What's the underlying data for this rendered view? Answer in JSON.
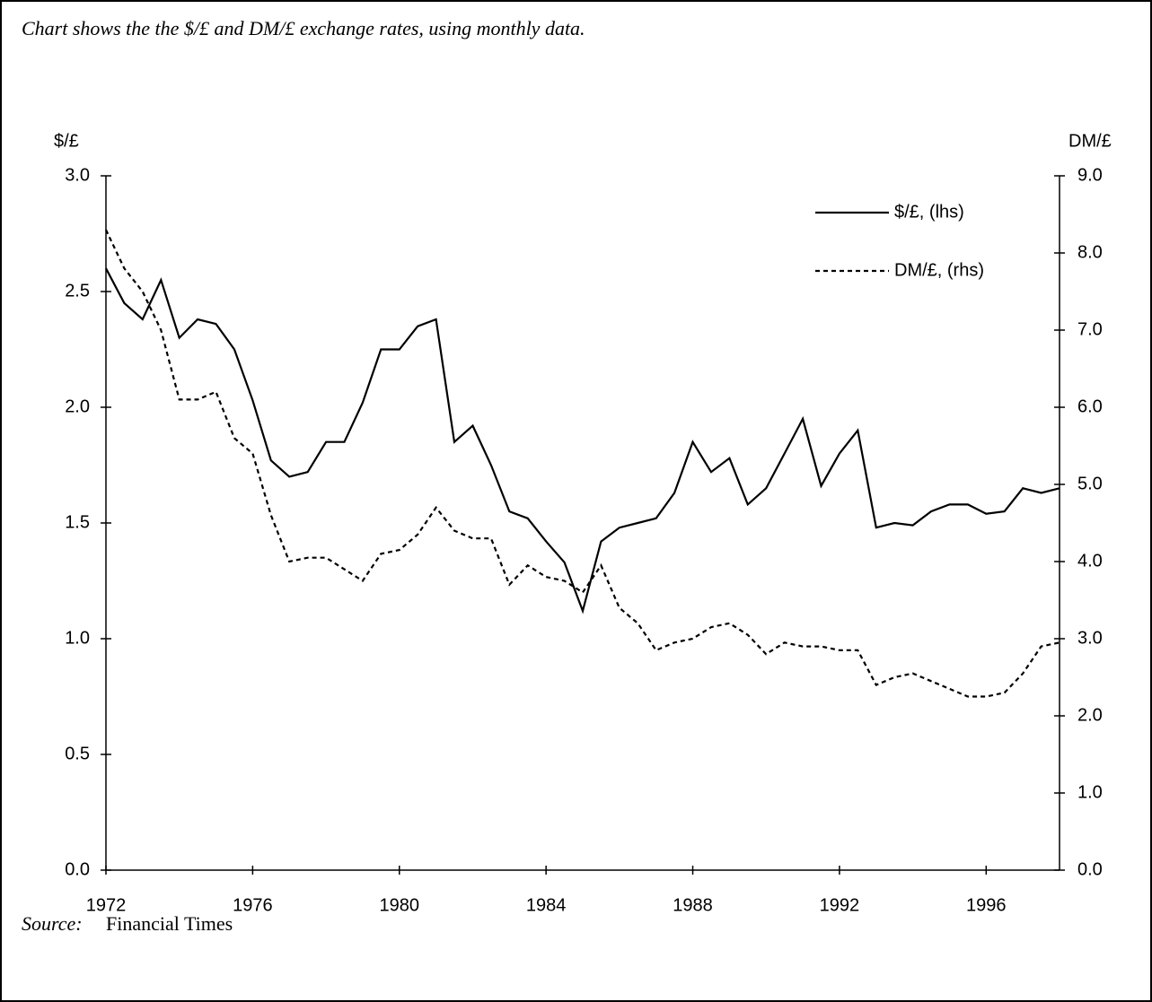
{
  "chart_data": {
    "type": "line",
    "title": "Chart shows the the $/£ and DM/£ exchange rates, using monthly data.",
    "y_label": "$/£",
    "y2_label": "DM/£",
    "source_label": "Source:",
    "source": "Financial Times",
    "x": [
      1972,
      1972.5,
      1973,
      1973.5,
      1974,
      1974.5,
      1975,
      1975.5,
      1976,
      1976.5,
      1977,
      1977.5,
      1978,
      1978.5,
      1979,
      1979.5,
      1980,
      1980.5,
      1981,
      1981.5,
      1982,
      1982.5,
      1983,
      1983.5,
      1984,
      1984.5,
      1985,
      1985.5,
      1986,
      1986.5,
      1987,
      1987.5,
      1988,
      1988.5,
      1989,
      1989.5,
      1990,
      1990.5,
      1991,
      1991.5,
      1992,
      1992.5,
      1993,
      1993.5,
      1994,
      1994.5,
      1995,
      1995.5,
      1996,
      1996.5,
      1997,
      1997.5,
      1998
    ],
    "series": [
      {
        "name": "$/£, (lhs)",
        "color": "#000000",
        "line_style": "solid",
        "axis": "y",
        "values": [
          2.6,
          2.45,
          2.38,
          2.55,
          2.3,
          2.38,
          2.36,
          2.25,
          2.03,
          1.77,
          1.7,
          1.72,
          1.85,
          1.85,
          2.02,
          2.25,
          2.25,
          2.35,
          2.38,
          1.85,
          1.92,
          1.75,
          1.55,
          1.52,
          1.42,
          1.33,
          1.12,
          1.42,
          1.48,
          1.5,
          1.52,
          1.63,
          1.85,
          1.72,
          1.78,
          1.58,
          1.65,
          1.8,
          1.95,
          1.66,
          1.8,
          1.9,
          1.48,
          1.5,
          1.49,
          1.55,
          1.58,
          1.58,
          1.54,
          1.55,
          1.65,
          1.63,
          1.65
        ]
      },
      {
        "name": "DM/£, (rhs)",
        "color": "#000000",
        "line_style": "dashed",
        "axis": "y2",
        "values": [
          8.3,
          7.8,
          7.5,
          7.0,
          6.1,
          6.1,
          6.2,
          5.6,
          5.4,
          4.6,
          4.0,
          4.05,
          4.05,
          3.9,
          3.75,
          4.1,
          4.15,
          4.35,
          4.7,
          4.4,
          4.3,
          4.3,
          3.7,
          3.95,
          3.8,
          3.75,
          3.6,
          3.95,
          3.4,
          3.2,
          2.85,
          2.95,
          3.0,
          3.15,
          3.2,
          3.05,
          2.8,
          2.95,
          2.9,
          2.9,
          2.85,
          2.85,
          2.4,
          2.5,
          2.55,
          2.45,
          2.35,
          2.25,
          2.25,
          2.3,
          2.55,
          2.9,
          2.95
        ]
      }
    ],
    "xlim": [
      1972,
      1998
    ],
    "xticks": [
      1972,
      1976,
      1980,
      1984,
      1988,
      1992,
      1996
    ],
    "ylim": [
      0,
      3
    ],
    "yticks": [
      {
        "value": 0,
        "label": "0.0"
      },
      0.5,
      {
        "value": 1,
        "label": "1.0"
      },
      1.5,
      {
        "value": 2,
        "label": "2.0"
      },
      2.5,
      {
        "value": 3,
        "label": "3.0"
      }
    ],
    "y2lim": [
      0,
      9
    ],
    "y2ticks": [
      {
        "value": 0,
        "label": "0.0"
      },
      {
        "value": 1,
        "label": "1.0"
      },
      {
        "value": 2,
        "label": "2.0"
      },
      {
        "value": 3,
        "label": "3.0"
      },
      {
        "value": 4,
        "label": "4.0"
      },
      {
        "value": 5,
        "label": "5.0"
      },
      {
        "value": 6,
        "label": "6.0"
      },
      {
        "value": 7,
        "label": "7.0"
      },
      {
        "value": 8,
        "label": "8.0"
      },
      {
        "value": 9,
        "label": "9.0"
      }
    ],
    "grid": false
  }
}
